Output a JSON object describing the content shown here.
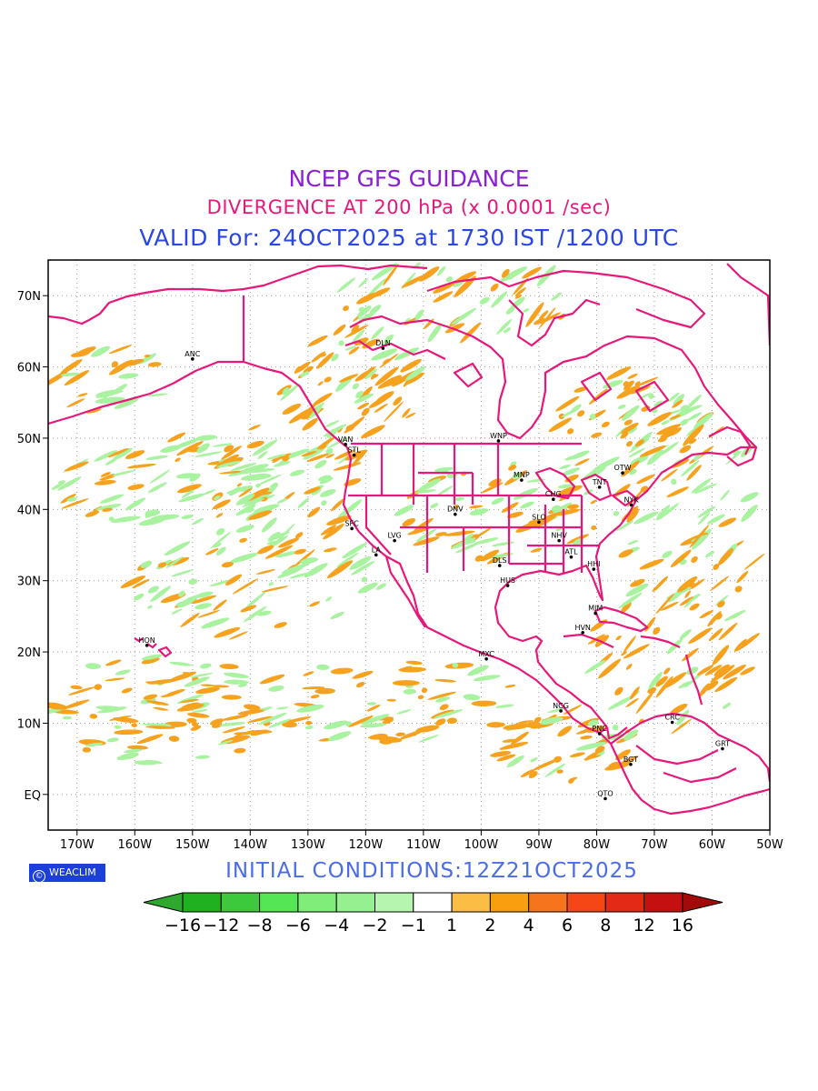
{
  "header": {
    "line1": "NCEP GFS GUIDANCE",
    "line2": "DIVERGENCE AT 200 hPa (x 0.0001 /sec)",
    "line3": "VALID For: 24OCT2025 at 1730 IST /1200 UTC"
  },
  "map": {
    "lat_labels": [
      "70N",
      "60N",
      "50N",
      "40N",
      "30N",
      "20N",
      "10N",
      "EQ"
    ],
    "lon_labels": [
      "170W",
      "160W",
      "150W",
      "140W",
      "130W",
      "120W",
      "110W",
      "100W",
      "90W",
      "80W",
      "70W",
      "60W",
      "50W"
    ],
    "cities": [
      {
        "label": "ANC"
      },
      {
        "label": "DLN"
      },
      {
        "label": "VAN"
      },
      {
        "label": "STL"
      },
      {
        "label": "WNP"
      },
      {
        "label": "MNP"
      },
      {
        "label": "TNT"
      },
      {
        "label": "OTW"
      },
      {
        "label": "CHG"
      },
      {
        "label": "NYK"
      },
      {
        "label": "DNV"
      },
      {
        "label": "SFC"
      },
      {
        "label": "LVG"
      },
      {
        "label": "SLO"
      },
      {
        "label": "NHV"
      },
      {
        "label": "LA"
      },
      {
        "label": "DLS"
      },
      {
        "label": "ATL"
      },
      {
        "label": "HHI"
      },
      {
        "label": "HUS"
      },
      {
        "label": "MIM"
      },
      {
        "label": "HVN"
      },
      {
        "label": "HON"
      },
      {
        "label": "MXC"
      },
      {
        "label": "NCG"
      },
      {
        "label": "CRC"
      },
      {
        "label": "PNC"
      },
      {
        "label": "GRT"
      },
      {
        "label": "BGT"
      },
      {
        "label": "QTO"
      }
    ],
    "colors": {
      "coast": "#e8177a",
      "grid": "#9a9a9a",
      "neg_light": "#a8f2a0",
      "pos_light": "#f7a21e"
    }
  },
  "colorbar": {
    "labels": [
      "−16",
      "−12",
      "−8",
      "−6",
      "−4",
      "−2",
      "−1",
      "1",
      "2",
      "4",
      "6",
      "8",
      "12",
      "16"
    ],
    "colors": [
      "#2ea82e",
      "#1fb11f",
      "#3cc93c",
      "#55e655",
      "#80ec7a",
      "#97f090",
      "#b6f5b0",
      "#ffffff",
      "#fcbd45",
      "#f99e0f",
      "#f5741c",
      "#f54716",
      "#e22a17",
      "#c41010",
      "#a30a0a"
    ]
  },
  "footer": {
    "badge": "WEACLIM",
    "initial_conditions": "INITIAL CONDITIONS:12Z21OCT2025"
  }
}
